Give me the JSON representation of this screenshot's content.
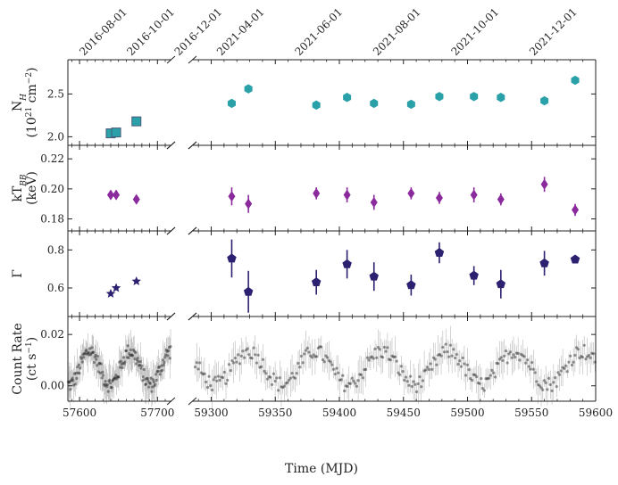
{
  "chart_data": {
    "type": "scatter",
    "xlabel": "Time (MJD)",
    "broken_x_axis": true,
    "x_segments": [
      {
        "xlim": [
          57585,
          57718
        ],
        "ticks": [
          57600,
          57700
        ],
        "tick_labels": [
          "57600",
          "57700"
        ]
      },
      {
        "xlim": [
          59285,
          59600
        ],
        "ticks": [
          59300,
          59350,
          59400,
          59450,
          59500,
          59550,
          59600
        ],
        "tick_labels": [
          "59300",
          "59350",
          "59400",
          "59450",
          "59500",
          "59550",
          "59600"
        ]
      }
    ],
    "top_axis_dates": [
      {
        "label": "2016-08-01",
        "mjd": 57601
      },
      {
        "label": "2016-10-01",
        "mjd": 57662
      },
      {
        "label": "2016-12-01",
        "mjd": 57723
      },
      {
        "label": "2021-04-01",
        "mjd": 59305
      },
      {
        "label": "2021-06-01",
        "mjd": 59366
      },
      {
        "label": "2021-08-01",
        "mjd": 59427
      },
      {
        "label": "2021-10-01",
        "mjd": 59488
      },
      {
        "label": "2021-12-01",
        "mjd": 59549
      }
    ],
    "panels": [
      {
        "id": "nh",
        "ylabel_line1": "N",
        "ylabel_sub": "H",
        "ylabel_line2": "(10",
        "ylabel_sup_a": "21",
        "ylabel_mid": " cm",
        "ylabel_sup_b": "−2",
        "ylabel_end": ")",
        "ylim": [
          1.9,
          2.9
        ],
        "yticks": [
          2.0,
          2.5
        ],
        "ytick_labels": [
          "2.0",
          "2.5"
        ],
        "series": [
          {
            "marker": "square",
            "color": "#2aa1a8",
            "points": [
              [
                57640,
                2.04,
                0.02
              ],
              [
                57647,
                2.05,
                0.02
              ],
              [
                57673,
                2.18,
                0.02
              ]
            ]
          },
          {
            "marker": "hexagon",
            "color": "#2aa1a8",
            "points": [
              [
                59316,
                2.39,
                0.02
              ],
              [
                59329,
                2.56,
                0.02
              ],
              [
                59382,
                2.37,
                0.02
              ],
              [
                59406,
                2.46,
                0.02
              ],
              [
                59427,
                2.39,
                0.02
              ],
              [
                59456,
                2.38,
                0.02
              ],
              [
                59478,
                2.47,
                0.02
              ],
              [
                59505,
                2.47,
                0.02
              ],
              [
                59526,
                2.46,
                0.02
              ],
              [
                59560,
                2.42,
                0.02
              ],
              [
                59584,
                2.66,
                0.02
              ]
            ]
          }
        ]
      },
      {
        "id": "kt",
        "ylabel_line1": "kT",
        "ylabel_sub": "BB",
        "ylabel_line2": "(keV)",
        "ylim": [
          0.172,
          0.229
        ],
        "yticks": [
          0.18,
          0.2,
          0.22
        ],
        "ytick_labels": [
          "0.18",
          "0.20",
          "0.22"
        ],
        "series": [
          {
            "marker": "diamond",
            "color": "#8a2a9c",
            "points": [
              [
                57640,
                0.196,
                0.003
              ],
              [
                57647,
                0.196,
                0.003
              ],
              [
                57673,
                0.193,
                0.003
              ],
              [
                59316,
                0.195,
                0.006
              ],
              [
                59329,
                0.19,
                0.006
              ],
              [
                59382,
                0.197,
                0.004
              ],
              [
                59406,
                0.196,
                0.005
              ],
              [
                59427,
                0.191,
                0.005
              ],
              [
                59456,
                0.197,
                0.004
              ],
              [
                59478,
                0.194,
                0.004
              ],
              [
                59505,
                0.196,
                0.005
              ],
              [
                59526,
                0.193,
                0.004
              ],
              [
                59560,
                0.203,
                0.005
              ],
              [
                59584,
                0.186,
                0.004
              ]
            ]
          }
        ]
      },
      {
        "id": "gamma",
        "ylabel_line1": "Γ",
        "ylim": [
          0.45,
          0.9
        ],
        "yticks": [
          0.6,
          0.8
        ],
        "ytick_labels": [
          "0.6",
          "0.8"
        ],
        "series": [
          {
            "marker": "star",
            "color": "#2c2170",
            "points": [
              [
                57640,
                0.57,
                0.01
              ],
              [
                57647,
                0.6,
                0.01
              ],
              [
                57673,
                0.635,
                0.01
              ]
            ]
          },
          {
            "marker": "pentagon",
            "color": "#2c2170",
            "points": [
              [
                59316,
                0.755,
                0.1
              ],
              [
                59329,
                0.58,
                0.11
              ],
              [
                59382,
                0.63,
                0.065
              ],
              [
                59406,
                0.725,
                0.075
              ],
              [
                59427,
                0.66,
                0.075
              ],
              [
                59456,
                0.615,
                0.055
              ],
              [
                59478,
                0.785,
                0.055
              ],
              [
                59505,
                0.665,
                0.05
              ],
              [
                59526,
                0.62,
                0.075
              ],
              [
                59560,
                0.73,
                0.065
              ],
              [
                59584,
                0.75,
                0.02
              ]
            ]
          }
        ]
      },
      {
        "id": "rate",
        "ylabel_line1": "Count Rate",
        "ylabel_line2": "(ct s",
        "ylabel_sup_b": "−1",
        "ylabel_end": ")",
        "ylim": [
          -0.006,
          0.027
        ],
        "yticks": [
          0.0,
          0.02
        ],
        "ytick_labels": [
          "0.00",
          "0.02"
        ],
        "series": [
          {
            "name": "light curve",
            "marker": "circle",
            "color": "#1a1a1a",
            "period_days": 52,
            "mean": 0.007,
            "amplitude": 0.0065,
            "scatter": 0.003,
            "segments": [
              [
                57585,
                57718,
                0.9
              ],
              [
                59287,
                59600,
                1.2
              ]
            ]
          }
        ]
      }
    ]
  }
}
